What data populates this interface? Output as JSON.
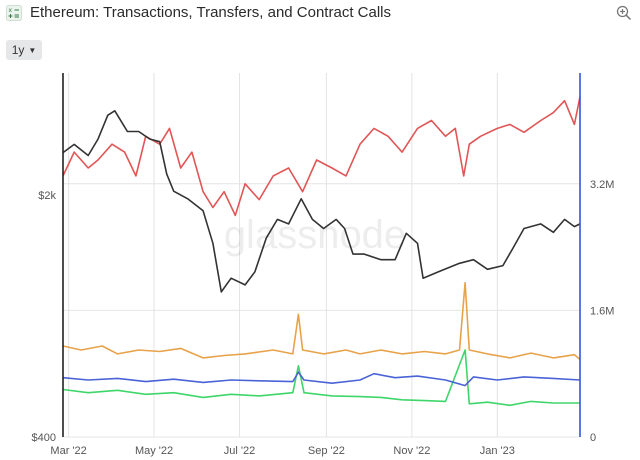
{
  "header": {
    "title": "Ethereum: Transactions, Transfers, and Contract Calls",
    "app_icon": "formula-icon",
    "zoom_icon": "zoom-in-icon"
  },
  "controls": {
    "range_label": "1y"
  },
  "watermark": "glassnode",
  "chart_data": {
    "type": "line",
    "title": "Ethereum: Transactions, Transfers, and Contract Calls",
    "x_ticks": [
      "Mar '22",
      "May '22",
      "Jul '22",
      "Sep '22",
      "Nov '22",
      "Jan '23"
    ],
    "x_range": [
      "2022-02-25",
      "2023-03-01"
    ],
    "left_axis": {
      "ticks": [
        "$2k",
        "$400"
      ],
      "scale": "log",
      "range": [
        400,
        4500
      ],
      "color": "#222222"
    },
    "right_axis": {
      "ticks": [
        "3.2M",
        "1.6M",
        "0"
      ],
      "range": [
        0,
        4600000
      ],
      "color": "#3355dd"
    },
    "grid": true,
    "legend": "none",
    "series": [
      {
        "axis": "left",
        "color": "#333333",
        "points": [
          [
            "2022-02-25",
            2650
          ],
          [
            "2022-03-05",
            2800
          ],
          [
            "2022-03-15",
            2600
          ],
          [
            "2022-03-22",
            2900
          ],
          [
            "2022-03-29",
            3400
          ],
          [
            "2022-04-03",
            3500
          ],
          [
            "2022-04-12",
            3050
          ],
          [
            "2022-04-20",
            3050
          ],
          [
            "2022-04-28",
            2900
          ],
          [
            "2022-05-05",
            2850
          ],
          [
            "2022-05-10",
            2300
          ],
          [
            "2022-05-15",
            2050
          ],
          [
            "2022-05-25",
            1950
          ],
          [
            "2022-06-05",
            1800
          ],
          [
            "2022-06-12",
            1450
          ],
          [
            "2022-06-18",
            1050
          ],
          [
            "2022-06-25",
            1150
          ],
          [
            "2022-07-05",
            1100
          ],
          [
            "2022-07-12",
            1200
          ],
          [
            "2022-07-20",
            1500
          ],
          [
            "2022-07-28",
            1700
          ],
          [
            "2022-08-05",
            1650
          ],
          [
            "2022-08-14",
            1950
          ],
          [
            "2022-08-22",
            1700
          ],
          [
            "2022-08-30",
            1600
          ],
          [
            "2022-09-08",
            1700
          ],
          [
            "2022-09-14",
            1600
          ],
          [
            "2022-09-20",
            1350
          ],
          [
            "2022-09-28",
            1350
          ],
          [
            "2022-10-10",
            1300
          ],
          [
            "2022-10-20",
            1300
          ],
          [
            "2022-10-28",
            1550
          ],
          [
            "2022-11-05",
            1450
          ],
          [
            "2022-11-09",
            1150
          ],
          [
            "2022-11-20",
            1200
          ],
          [
            "2022-12-05",
            1270
          ],
          [
            "2022-12-15",
            1300
          ],
          [
            "2022-12-25",
            1220
          ],
          [
            "2023-01-05",
            1250
          ],
          [
            "2023-01-12",
            1400
          ],
          [
            "2023-01-20",
            1600
          ],
          [
            "2023-02-01",
            1650
          ],
          [
            "2023-02-10",
            1560
          ],
          [
            "2023-02-18",
            1700
          ],
          [
            "2023-02-25",
            1620
          ],
          [
            "2023-03-01",
            1650
          ]
        ]
      },
      {
        "axis": "right",
        "color": "#e05656",
        "points": [
          [
            "2022-02-25",
            3300000
          ],
          [
            "2022-03-05",
            3600000
          ],
          [
            "2022-03-15",
            3400000
          ],
          [
            "2022-03-22",
            3500000
          ],
          [
            "2022-04-01",
            3700000
          ],
          [
            "2022-04-10",
            3600000
          ],
          [
            "2022-04-18",
            3300000
          ],
          [
            "2022-04-25",
            3800000
          ],
          [
            "2022-05-05",
            3700000
          ],
          [
            "2022-05-12",
            3900000
          ],
          [
            "2022-05-20",
            3400000
          ],
          [
            "2022-05-28",
            3600000
          ],
          [
            "2022-06-05",
            3100000
          ],
          [
            "2022-06-12",
            2900000
          ],
          [
            "2022-06-20",
            3100000
          ],
          [
            "2022-06-28",
            2800000
          ],
          [
            "2022-07-05",
            3200000
          ],
          [
            "2022-07-15",
            3000000
          ],
          [
            "2022-07-25",
            3300000
          ],
          [
            "2022-08-05",
            3400000
          ],
          [
            "2022-08-15",
            3100000
          ],
          [
            "2022-08-25",
            3500000
          ],
          [
            "2022-09-05",
            3400000
          ],
          [
            "2022-09-15",
            3300000
          ],
          [
            "2022-09-25",
            3700000
          ],
          [
            "2022-10-05",
            3900000
          ],
          [
            "2022-10-15",
            3800000
          ],
          [
            "2022-10-25",
            3600000
          ],
          [
            "2022-11-05",
            3900000
          ],
          [
            "2022-11-15",
            4000000
          ],
          [
            "2022-11-25",
            3800000
          ],
          [
            "2022-12-02",
            3900000
          ],
          [
            "2022-12-08",
            3300000
          ],
          [
            "2022-12-12",
            3700000
          ],
          [
            "2022-12-20",
            3800000
          ],
          [
            "2023-01-01",
            3900000
          ],
          [
            "2023-01-10",
            3950000
          ],
          [
            "2023-01-20",
            3850000
          ],
          [
            "2023-02-01",
            4000000
          ],
          [
            "2023-02-10",
            4100000
          ],
          [
            "2023-02-18",
            4250000
          ],
          [
            "2023-02-25",
            3950000
          ],
          [
            "2023-03-01",
            4300000
          ]
        ]
      },
      {
        "axis": "right",
        "color": "#e8a24a",
        "points": [
          [
            "2022-02-25",
            1150000
          ],
          [
            "2022-03-10",
            1100000
          ],
          [
            "2022-03-25",
            1150000
          ],
          [
            "2022-04-05",
            1050000
          ],
          [
            "2022-04-20",
            1100000
          ],
          [
            "2022-05-05",
            1080000
          ],
          [
            "2022-05-20",
            1120000
          ],
          [
            "2022-06-05",
            1000000
          ],
          [
            "2022-06-20",
            1030000
          ],
          [
            "2022-07-05",
            1050000
          ],
          [
            "2022-07-25",
            1100000
          ],
          [
            "2022-08-08",
            1050000
          ],
          [
            "2022-08-12",
            1550000
          ],
          [
            "2022-08-15",
            1100000
          ],
          [
            "2022-08-30",
            1050000
          ],
          [
            "2022-09-15",
            1100000
          ],
          [
            "2022-09-25",
            1050000
          ],
          [
            "2022-10-10",
            1100000
          ],
          [
            "2022-10-25",
            1050000
          ],
          [
            "2022-11-10",
            1080000
          ],
          [
            "2022-11-25",
            1050000
          ],
          [
            "2022-12-05",
            1100000
          ],
          [
            "2022-12-09",
            1950000
          ],
          [
            "2022-12-12",
            1100000
          ],
          [
            "2022-12-25",
            1050000
          ],
          [
            "2023-01-10",
            1000000
          ],
          [
            "2023-01-25",
            1060000
          ],
          [
            "2023-02-10",
            1000000
          ],
          [
            "2023-02-25",
            1040000
          ],
          [
            "2023-03-01",
            980000
          ]
        ]
      },
      {
        "axis": "right",
        "color": "#4a63d6",
        "points": [
          [
            "2022-02-25",
            750000
          ],
          [
            "2022-03-15",
            720000
          ],
          [
            "2022-04-05",
            740000
          ],
          [
            "2022-04-25",
            700000
          ],
          [
            "2022-05-15",
            730000
          ],
          [
            "2022-06-05",
            690000
          ],
          [
            "2022-06-25",
            720000
          ],
          [
            "2022-07-15",
            710000
          ],
          [
            "2022-08-08",
            700000
          ],
          [
            "2022-08-12",
            820000
          ],
          [
            "2022-08-16",
            720000
          ],
          [
            "2022-09-05",
            680000
          ],
          [
            "2022-09-25",
            720000
          ],
          [
            "2022-10-05",
            800000
          ],
          [
            "2022-10-20",
            750000
          ],
          [
            "2022-11-05",
            770000
          ],
          [
            "2022-11-25",
            720000
          ],
          [
            "2022-12-09",
            650000
          ],
          [
            "2022-12-15",
            760000
          ],
          [
            "2023-01-01",
            720000
          ],
          [
            "2023-01-20",
            760000
          ],
          [
            "2023-02-10",
            740000
          ],
          [
            "2023-03-01",
            720000
          ]
        ]
      },
      {
        "axis": "right",
        "color": "#3ed66a",
        "points": [
          [
            "2022-02-25",
            600000
          ],
          [
            "2022-03-15",
            560000
          ],
          [
            "2022-04-05",
            590000
          ],
          [
            "2022-04-25",
            540000
          ],
          [
            "2022-05-15",
            560000
          ],
          [
            "2022-06-05",
            500000
          ],
          [
            "2022-06-25",
            540000
          ],
          [
            "2022-07-15",
            520000
          ],
          [
            "2022-08-08",
            560000
          ],
          [
            "2022-08-12",
            900000
          ],
          [
            "2022-08-16",
            560000
          ],
          [
            "2022-09-05",
            520000
          ],
          [
            "2022-09-25",
            510000
          ],
          [
            "2022-10-10",
            500000
          ],
          [
            "2022-10-25",
            470000
          ],
          [
            "2022-11-10",
            460000
          ],
          [
            "2022-11-25",
            450000
          ],
          [
            "2022-12-09",
            1100000
          ],
          [
            "2022-12-12",
            420000
          ],
          [
            "2022-12-25",
            440000
          ],
          [
            "2023-01-10",
            400000
          ],
          [
            "2023-01-25",
            450000
          ],
          [
            "2023-02-10",
            430000
          ],
          [
            "2023-03-01",
            430000
          ]
        ]
      }
    ]
  }
}
